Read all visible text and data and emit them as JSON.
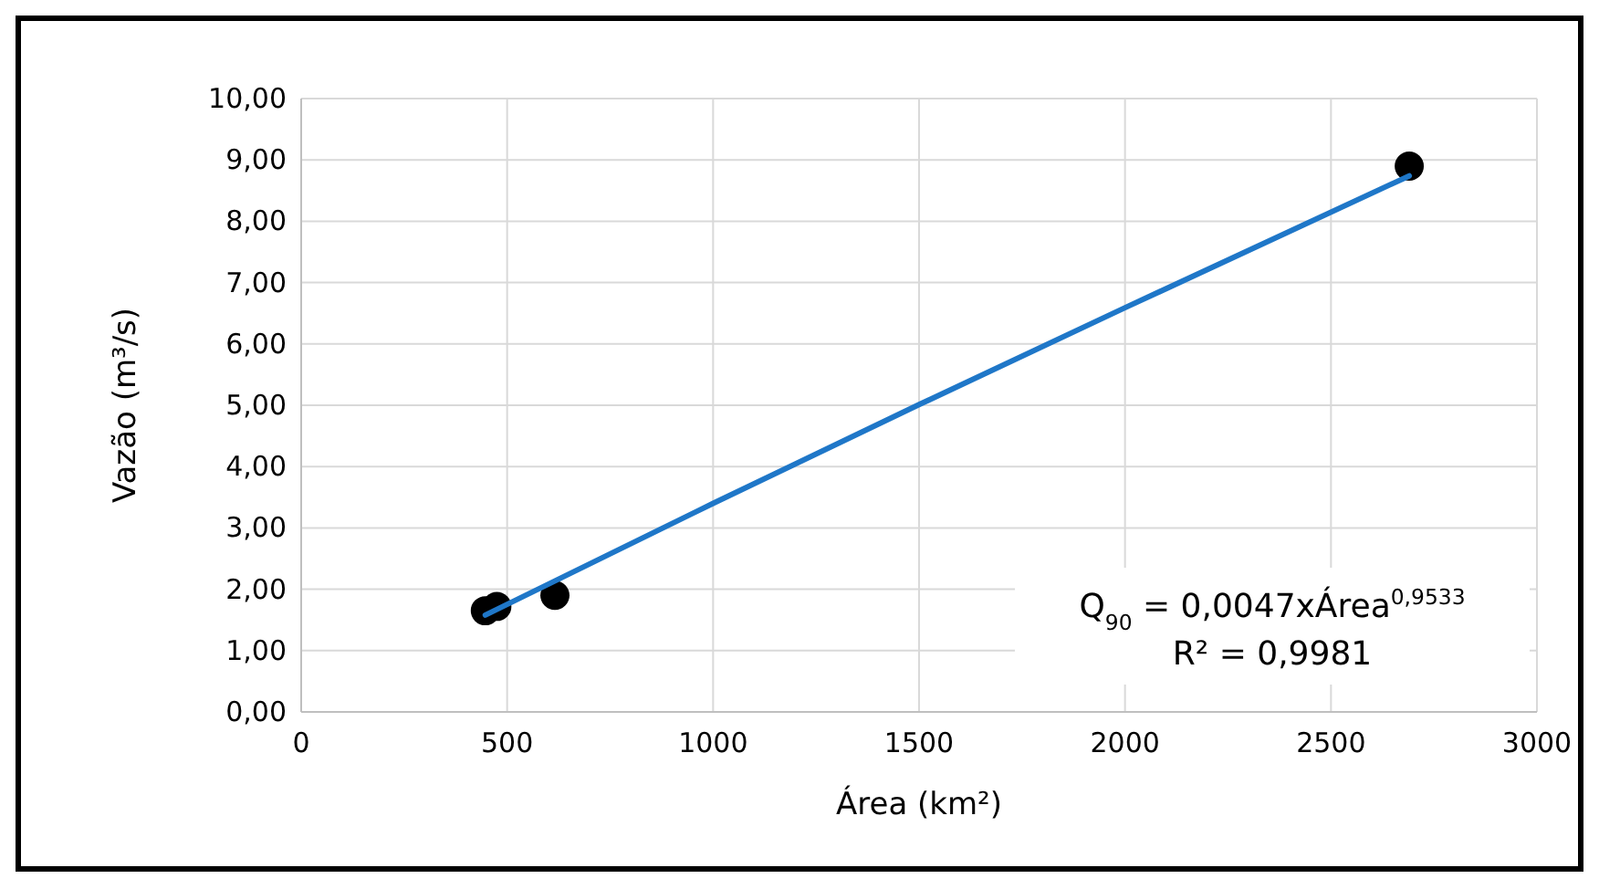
{
  "chart_data": {
    "type": "scatter",
    "xlabel": "Área (km²)",
    "ylabel": "Vazão (m³/s)",
    "series": [
      {
        "color": "#000000",
        "marker": "circle",
        "x": [
          447,
          475,
          616,
          2690
        ],
        "values": [
          1.65,
          1.72,
          1.9,
          8.9
        ]
      },
      {
        "type": "line",
        "color": "#1f77c8",
        "marker": "none",
        "x": [
          447,
          1000,
          1500,
          2000,
          2690
        ],
        "values": [
          1.58,
          3.4,
          5.01,
          6.59,
          8.74
        ]
      }
    ],
    "xlim": [
      0,
      3000
    ],
    "xticks": [
      0,
      500,
      1000,
      1500,
      2000,
      2500,
      3000
    ],
    "ylim": [
      0,
      10
    ],
    "yticks": [
      {
        "value": 0,
        "label": "0,00"
      },
      {
        "value": 1,
        "label": "1,00"
      },
      {
        "value": 2,
        "label": "2,00"
      },
      {
        "value": 3,
        "label": "3,00"
      },
      {
        "value": 4,
        "label": "4,00"
      },
      {
        "value": 5,
        "label": "5,00"
      },
      {
        "value": 6,
        "label": "6,00"
      },
      {
        "value": 7,
        "label": "7,00"
      },
      {
        "value": 8,
        "label": "8,00"
      },
      {
        "value": 9,
        "label": "9,00"
      },
      {
        "value": 10,
        "label": "10,00"
      }
    ],
    "grid": true,
    "annotations": [
      "Q$_{90}$ = 0,0047xÁrea$^{0,9533}$",
      "R² = 0,9981"
    ]
  }
}
